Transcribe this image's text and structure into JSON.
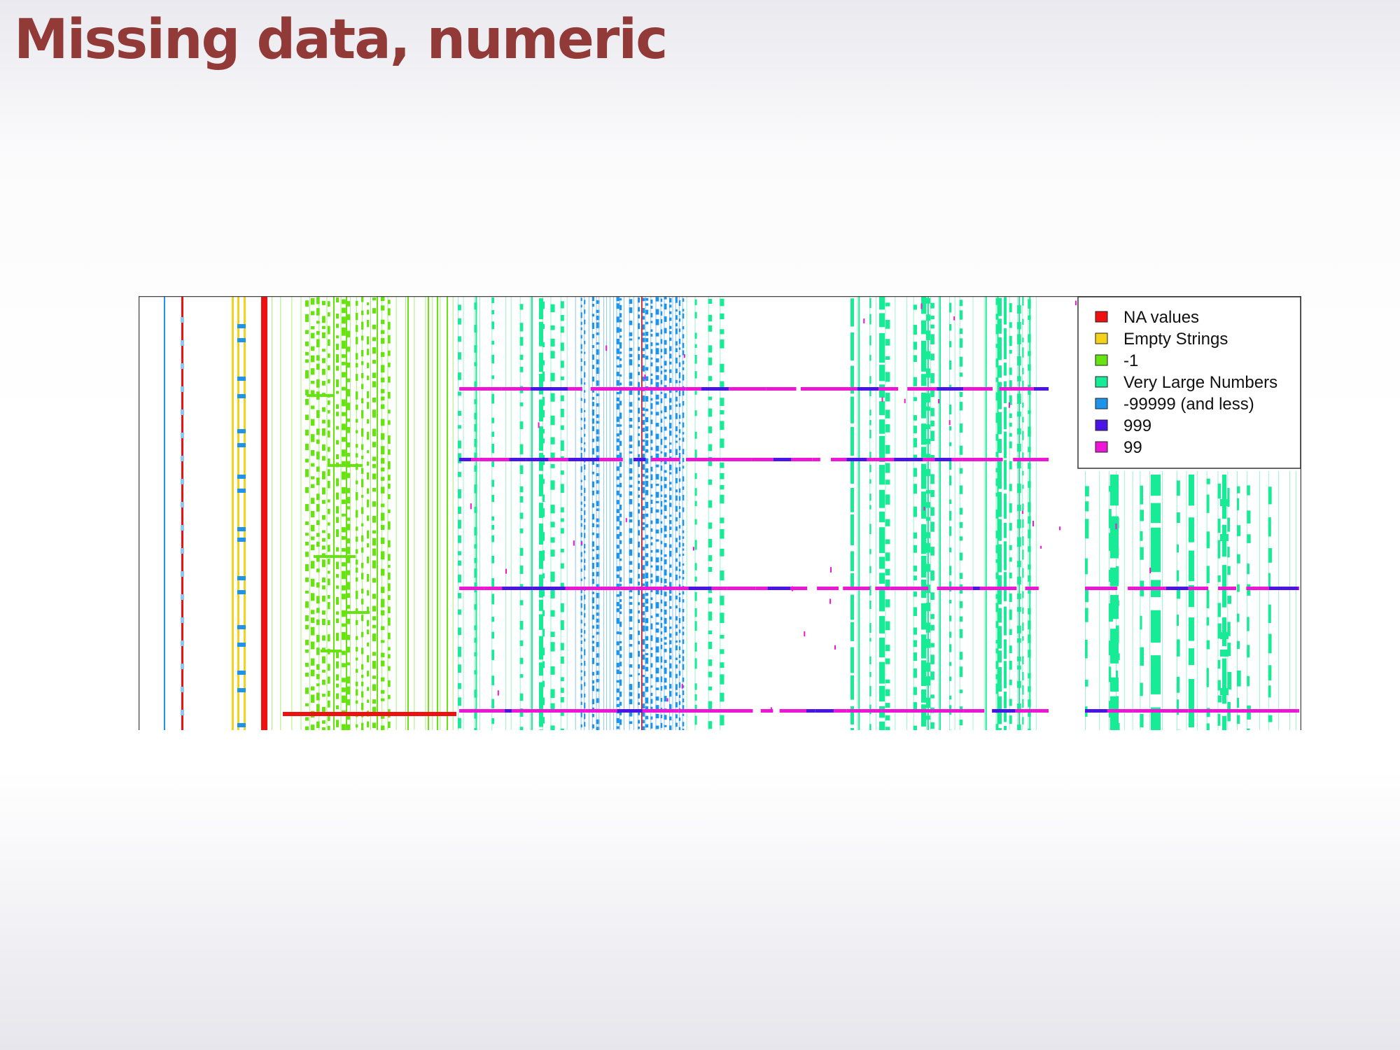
{
  "slide": {
    "title": "Missing data, numeric"
  },
  "colors": {
    "na": "#ee1111",
    "empty": "#f5d21a",
    "neg1": "#66e311",
    "large": "#18eb95",
    "neg99999": "#1e93ea",
    "n999": "#4b14e6",
    "n99": "#ee16d5",
    "light_green": "#a6f07a",
    "light_teal": "#9ff0d0",
    "light_blue": "#8cc6f2"
  },
  "chart_data": {
    "type": "heatmap",
    "title": "",
    "xlabel": "",
    "ylabel": "",
    "legend": {
      "placement": "top-right",
      "entries": [
        {
          "label": "NA values",
          "color": "#ee1111"
        },
        {
          "label": "Empty Strings",
          "color": "#f5d21a"
        },
        {
          "label": "-1",
          "color": "#66e311"
        },
        {
          "label": "Very Large Numbers",
          "color": "#18eb95"
        },
        {
          "label": "-99999 (and less)",
          "color": "#1e93ea"
        },
        {
          "label": "999",
          "color": "#4b14e6"
        },
        {
          "label": "99",
          "color": "#ee16d5"
        }
      ]
    },
    "grid": false
  }
}
